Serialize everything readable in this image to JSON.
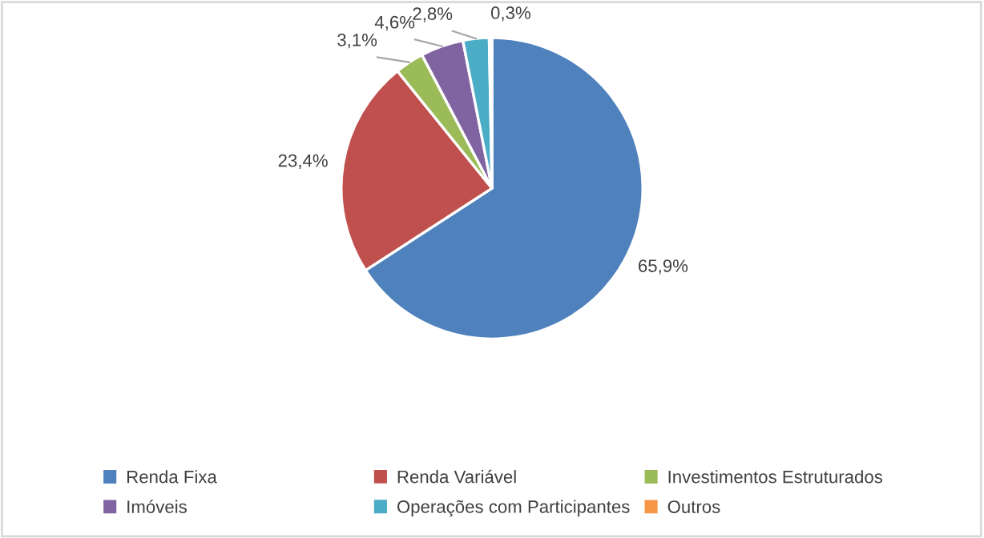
{
  "chart_data": {
    "type": "pie",
    "categories": [
      "Renda Fixa",
      "Renda Variável",
      "Investimentos Estruturados",
      "Imóveis",
      "Operações com Participantes",
      "Outros"
    ],
    "values": [
      65.9,
      23.4,
      3.1,
      4.6,
      2.8,
      0.3
    ],
    "value_labels": [
      "65,9%",
      "23,4%",
      "3,1%",
      "4,6%",
      "2,8%",
      "0,3%"
    ],
    "colors": [
      "#4f81bd",
      "#c0504d",
      "#9bbb59",
      "#8064a2",
      "#4bacc6",
      "#f79646"
    ],
    "legend": "bottom"
  }
}
